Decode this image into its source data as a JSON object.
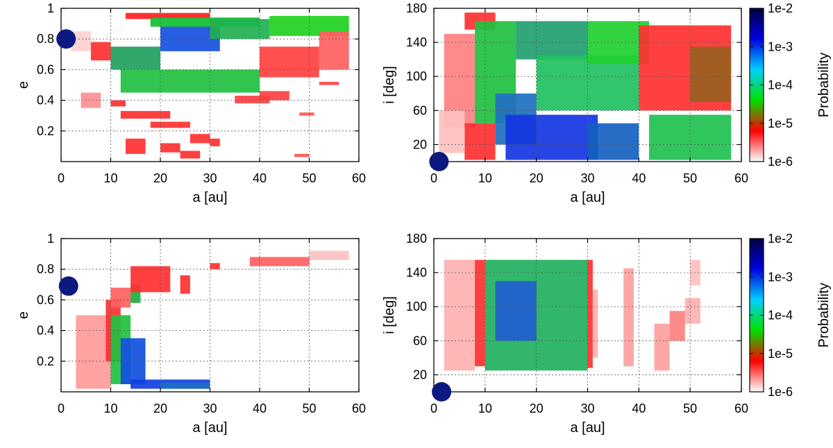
{
  "figure": {
    "colorbar": {
      "label": "Probability",
      "ticks": [
        "1e-2",
        "1e-3",
        "1e-4",
        "1e-5",
        "1e-6"
      ],
      "colors": [
        "#000040",
        "#0000e0",
        "#00d0ff",
        "#00e000",
        "#ff0000",
        "#ffffff"
      ]
    }
  },
  "chart_data": [
    {
      "type": "heatmap",
      "id": "top-left",
      "xlabel": "a [au]",
      "ylabel": "e",
      "xlim": [
        0,
        60
      ],
      "ylim": [
        0,
        1
      ],
      "xticks": [
        "0",
        "10",
        "20",
        "30",
        "40",
        "50",
        "60"
      ],
      "yticks": [
        "0.2",
        "0.4",
        "0.6",
        "0.8",
        "1"
      ],
      "marker": {
        "a": 1,
        "e": 0.8
      },
      "cells": [
        [
          13,
          0.93,
          30,
          0.97,
          "#ff2020"
        ],
        [
          18,
          0.88,
          40,
          0.94,
          "#10c030"
        ],
        [
          20,
          0.72,
          32,
          0.88,
          "#1550e0"
        ],
        [
          30,
          0.8,
          42,
          0.93,
          "#20b050"
        ],
        [
          10,
          0.6,
          20,
          0.75,
          "#20a060"
        ],
        [
          42,
          0.82,
          58,
          0.95,
          "#20d020"
        ],
        [
          6,
          0.66,
          10,
          0.78,
          "#ff3030"
        ],
        [
          12,
          0.45,
          40,
          0.6,
          "#20c040"
        ],
        [
          40,
          0.55,
          52,
          0.75,
          "#ff4040"
        ],
        [
          52,
          0.6,
          58,
          0.85,
          "#ff6060"
        ],
        [
          2,
          0.72,
          6,
          0.85,
          "#ffd0d0"
        ],
        [
          4,
          0.35,
          8,
          0.45,
          "#ff9090"
        ],
        [
          10,
          0.36,
          13,
          0.4,
          "#ff3030"
        ],
        [
          12,
          0.28,
          22,
          0.33,
          "#ff3030"
        ],
        [
          18,
          0.22,
          26,
          0.26,
          "#ff3030"
        ],
        [
          13,
          0.05,
          17,
          0.15,
          "#ff3030"
        ],
        [
          20,
          0.06,
          24,
          0.12,
          "#ff3030"
        ],
        [
          26,
          0.12,
          30,
          0.18,
          "#ff3030"
        ],
        [
          30,
          0.1,
          32,
          0.15,
          "#ff3030"
        ],
        [
          24,
          0.02,
          28,
          0.07,
          "#ff3030"
        ],
        [
          35,
          0.38,
          42,
          0.43,
          "#ff4040"
        ],
        [
          40,
          0.4,
          46,
          0.46,
          "#ff4040"
        ],
        [
          48,
          0.3,
          51,
          0.32,
          "#ff5050"
        ],
        [
          47,
          0.03,
          50,
          0.05,
          "#ff5050"
        ],
        [
          52,
          0.5,
          56,
          0.52,
          "#ff4040"
        ]
      ]
    },
    {
      "type": "heatmap",
      "id": "top-right",
      "xlabel": "a [au]",
      "ylabel": "i [deg]",
      "xlim": [
        0,
        60
      ],
      "ylim": [
        0,
        180
      ],
      "xticks": [
        "0",
        "10",
        "20",
        "30",
        "40",
        "50",
        "60"
      ],
      "yticks": [
        "20",
        "60",
        "100",
        "140",
        "180"
      ],
      "marker": {
        "a": 1,
        "i": 0
      },
      "cells": [
        [
          6,
          155,
          12,
          175,
          "#ff3030"
        ],
        [
          2,
          40,
          8,
          150,
          "#ff8080"
        ],
        [
          8,
          45,
          16,
          165,
          "#20c040"
        ],
        [
          12,
          20,
          20,
          80,
          "#2070c0"
        ],
        [
          16,
          120,
          30,
          165,
          "#20a070"
        ],
        [
          20,
          60,
          40,
          125,
          "#20c060"
        ],
        [
          30,
          115,
          42,
          165,
          "#20d030"
        ],
        [
          14,
          2,
          32,
          55,
          "#1535e0"
        ],
        [
          30,
          2,
          40,
          45,
          "#1560c0"
        ],
        [
          40,
          60,
          58,
          160,
          "#ff3030"
        ],
        [
          42,
          2,
          58,
          55,
          "#20c050"
        ],
        [
          50,
          70,
          58,
          135,
          "#9a6020"
        ],
        [
          6,
          2,
          12,
          45,
          "#ff3030"
        ],
        [
          1,
          10,
          6,
          60,
          "#ffc0c0"
        ]
      ]
    },
    {
      "type": "heatmap",
      "id": "bottom-left",
      "xlabel": "a [au]",
      "ylabel": "e",
      "xlim": [
        0,
        60
      ],
      "ylim": [
        0,
        1
      ],
      "xticks": [
        "0",
        "10",
        "20",
        "30",
        "40",
        "50",
        "60"
      ],
      "yticks": [
        "0.2",
        "0.4",
        "0.6",
        "0.8",
        "1"
      ],
      "marker": {
        "a": 1.5,
        "e": 0.69
      },
      "cells": [
        [
          3,
          0.02,
          10,
          0.5,
          "#ff9a9a"
        ],
        [
          9,
          0.2,
          12,
          0.6,
          "#ff3030"
        ],
        [
          10,
          0.05,
          14,
          0.5,
          "#20c040"
        ],
        [
          12,
          0.05,
          17,
          0.35,
          "#1050e0"
        ],
        [
          14,
          0.02,
          30,
          0.08,
          "#1040e0"
        ],
        [
          14,
          0.58,
          16,
          0.7,
          "#20b040"
        ],
        [
          10,
          0.55,
          14,
          0.68,
          "#ff6060"
        ],
        [
          14,
          0.65,
          22,
          0.82,
          "#ff3030"
        ],
        [
          24,
          0.64,
          26,
          0.76,
          "#ff3030"
        ],
        [
          30,
          0.8,
          32,
          0.84,
          "#ff3030"
        ],
        [
          38,
          0.82,
          50,
          0.88,
          "#ff6060"
        ],
        [
          50,
          0.86,
          58,
          0.92,
          "#ffc0c0"
        ],
        [
          20,
          0.02,
          30,
          0.06,
          "#2070c0"
        ]
      ]
    },
    {
      "type": "heatmap",
      "id": "bottom-right",
      "xlabel": "a [au]",
      "ylabel": "i [deg]",
      "xlim": [
        0,
        60
      ],
      "ylim": [
        0,
        180
      ],
      "xticks": [
        "0",
        "10",
        "20",
        "30",
        "40",
        "50",
        "60"
      ],
      "yticks": [
        "20",
        "60",
        "100",
        "140",
        "180"
      ],
      "marker": {
        "a": 1.5,
        "i": 0
      },
      "cells": [
        [
          2,
          25,
          8,
          155,
          "#ffb0b0"
        ],
        [
          8,
          30,
          10,
          155,
          "#ff3030"
        ],
        [
          10,
          25,
          30,
          155,
          "#20b060"
        ],
        [
          12,
          60,
          20,
          130,
          "#2060d0"
        ],
        [
          30,
          28,
          31,
          155,
          "#ff3030"
        ],
        [
          31,
          40,
          32,
          120,
          "#ffb0b0"
        ],
        [
          37,
          30,
          39,
          145,
          "#ffa0a0"
        ],
        [
          43,
          25,
          46,
          80,
          "#ffa0a0"
        ],
        [
          46,
          60,
          49,
          95,
          "#ff8080"
        ],
        [
          49,
          80,
          52,
          110,
          "#ffb0b0"
        ],
        [
          50,
          125,
          52,
          155,
          "#ffc0c0"
        ]
      ]
    }
  ]
}
